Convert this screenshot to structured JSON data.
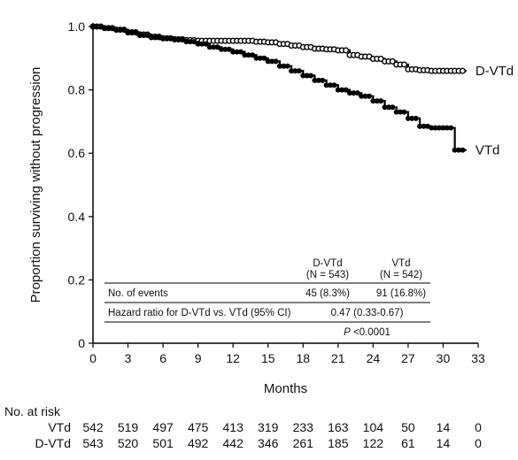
{
  "chart_data": {
    "type": "line",
    "xlabel": "Months",
    "ylabel": "Proportion surviving without progression",
    "xlim": [
      0,
      33
    ],
    "ylim": [
      0,
      1.0
    ],
    "x_ticks": [
      0,
      3,
      6,
      9,
      12,
      15,
      18,
      21,
      24,
      27,
      30,
      33
    ],
    "y_ticks": [
      "0",
      "0.2",
      "0.4",
      "0.6",
      "0.8",
      "1.0"
    ],
    "grid": false,
    "series": [
      {
        "name": "D-VTd",
        "color": "#000000",
        "marker": "open-circle",
        "points": [
          [
            0,
            1.0
          ],
          [
            1,
            0.995
          ],
          [
            2,
            0.99
          ],
          [
            3,
            0.982
          ],
          [
            4,
            0.975
          ],
          [
            5,
            0.968
          ],
          [
            6,
            0.963
          ],
          [
            7,
            0.96
          ],
          [
            8,
            0.957
          ],
          [
            9,
            0.955
          ],
          [
            10,
            0.955
          ],
          [
            11,
            0.955
          ],
          [
            12,
            0.955
          ],
          [
            13,
            0.955
          ],
          [
            14,
            0.952
          ],
          [
            15,
            0.95
          ],
          [
            16,
            0.945
          ],
          [
            17,
            0.94
          ],
          [
            18,
            0.935
          ],
          [
            19,
            0.93
          ],
          [
            20,
            0.928
          ],
          [
            21,
            0.925
          ],
          [
            22,
            0.91
          ],
          [
            23,
            0.905
          ],
          [
            24,
            0.898
          ],
          [
            25,
            0.89
          ],
          [
            26,
            0.88
          ],
          [
            27,
            0.865
          ],
          [
            28,
            0.862
          ],
          [
            29,
            0.86
          ],
          [
            30,
            0.86
          ],
          [
            31,
            0.86
          ],
          [
            32,
            0.86
          ]
        ]
      },
      {
        "name": "VTd",
        "color": "#000000",
        "marker": "filled-circle",
        "points": [
          [
            0,
            1.0
          ],
          [
            1,
            0.995
          ],
          [
            2,
            0.99
          ],
          [
            3,
            0.98
          ],
          [
            4,
            0.972
          ],
          [
            5,
            0.965
          ],
          [
            6,
            0.962
          ],
          [
            7,
            0.958
          ],
          [
            8,
            0.952
          ],
          [
            9,
            0.945
          ],
          [
            10,
            0.935
          ],
          [
            11,
            0.928
          ],
          [
            12,
            0.92
          ],
          [
            13,
            0.91
          ],
          [
            14,
            0.9
          ],
          [
            15,
            0.89
          ],
          [
            16,
            0.875
          ],
          [
            17,
            0.86
          ],
          [
            18,
            0.845
          ],
          [
            19,
            0.83
          ],
          [
            20,
            0.815
          ],
          [
            21,
            0.8
          ],
          [
            22,
            0.79
          ],
          [
            23,
            0.78
          ],
          [
            24,
            0.765
          ],
          [
            25,
            0.745
          ],
          [
            26,
            0.73
          ],
          [
            27,
            0.71
          ],
          [
            28,
            0.685
          ],
          [
            29,
            0.68
          ],
          [
            30,
            0.68
          ],
          [
            31,
            0.61
          ],
          [
            32,
            0.61
          ]
        ]
      }
    ],
    "annotation_table": {
      "headers": [
        {
          "name": "D-VTd",
          "n": "(N = 543)"
        },
        {
          "name": "VTd",
          "n": "(N = 542)"
        }
      ],
      "rows": [
        {
          "label": "No. of events",
          "values": [
            "45 (8.3%)",
            "91 (16.8%)"
          ]
        },
        {
          "label": "Hazard ratio for D-VTd vs. VTd (95% CI)",
          "values": [
            "0.47 (0.33-0.67)"
          ]
        }
      ],
      "p_value": {
        "prefix": "P",
        "rest": " <0.0001"
      }
    },
    "at_risk": {
      "title": "No. at risk",
      "rows": [
        {
          "name": "VTd",
          "values": [
            "542",
            "519",
            "497",
            "475",
            "413",
            "319",
            "233",
            "163",
            "104",
            "50",
            "14",
            "0"
          ]
        },
        {
          "name": "D-VTd",
          "values": [
            "543",
            "520",
            "501",
            "492",
            "442",
            "346",
            "261",
            "185",
            "122",
            "61",
            "14",
            "0"
          ]
        }
      ]
    }
  }
}
